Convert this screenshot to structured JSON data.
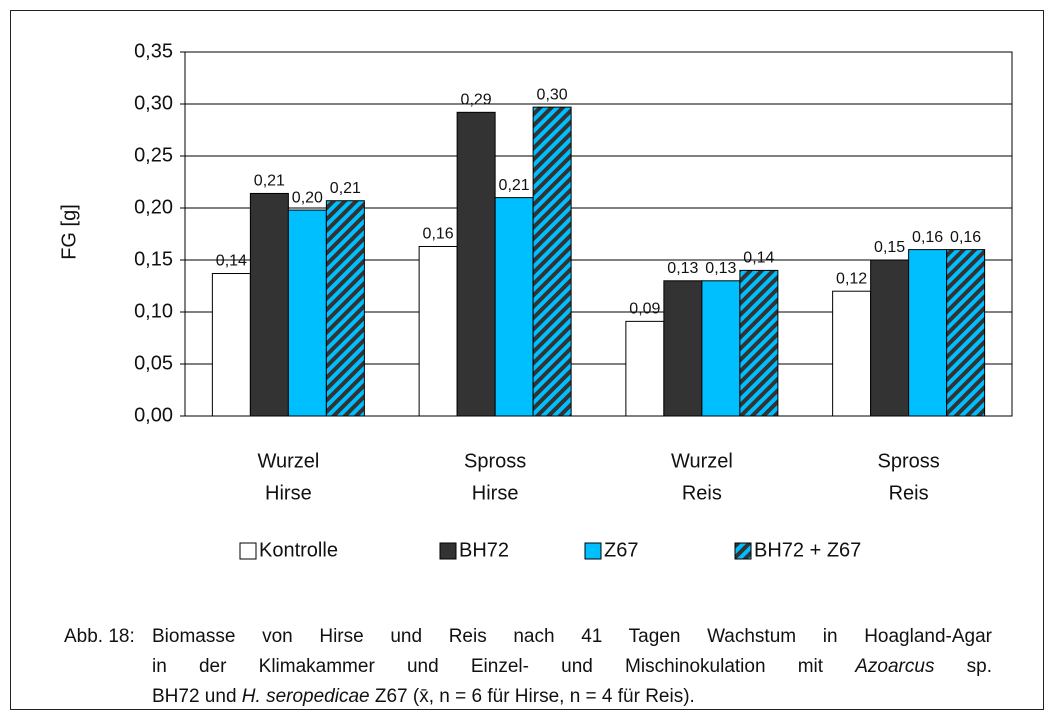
{
  "chart_data": {
    "type": "bar",
    "y_label": "FG [g]",
    "categories": [
      [
        "Wurzel",
        "Hirse"
      ],
      [
        "Spross",
        "Hirse"
      ],
      [
        "Wurzel",
        "Reis"
      ],
      [
        "Spross",
        "Reis"
      ]
    ],
    "series": [
      {
        "name": "Kontrolle",
        "color": "#ffffff",
        "values": [
          0.137,
          0.163,
          0.091,
          0.12
        ],
        "value_labels": [
          "0,14",
          "0,16",
          "0,09",
          "0,12"
        ]
      },
      {
        "name": "BH72",
        "color": "#333333",
        "values": [
          0.214,
          0.292,
          0.13,
          0.15
        ],
        "value_labels": [
          "0,21",
          "0,29",
          "0,13",
          "0,15"
        ]
      },
      {
        "name": "Z67",
        "color": "#00bfff",
        "values": [
          0.198,
          0.21,
          0.13,
          0.16
        ],
        "value_labels": [
          "0,20",
          "0,21",
          "0,13",
          "0,16"
        ]
      },
      {
        "name": "BH72 + Z67",
        "color": "#00bfff",
        "hatch_color": "#333333",
        "values": [
          0.207,
          0.297,
          0.14,
          0.16
        ],
        "value_labels": [
          "0,21",
          "0,30",
          "0,14",
          "0,16"
        ]
      }
    ],
    "ylim": [
      0,
      0.35
    ],
    "yticks": [
      {
        "value": 0,
        "label": "0,00"
      },
      {
        "value": 0.05,
        "label": "0,05"
      },
      {
        "value": 0.1,
        "label": "0,10"
      },
      {
        "value": 0.15,
        "label": "0,15"
      },
      {
        "value": 0.2,
        "label": "0,20"
      },
      {
        "value": 0.25,
        "label": "0,25"
      },
      {
        "value": 0.3,
        "label": "0,30"
      },
      {
        "value": 0.35,
        "label": "0,35"
      }
    ],
    "grid": true,
    "legend": "bottom"
  },
  "caption": {
    "label": "Abb. 18:",
    "lines": [
      [
        {
          "text": "Biomasse von Hirse und Reis nach 41 Tagen Wachstum in Hoagland-Agar"
        }
      ],
      [
        {
          "text": "in der Klimakammer und Einzel- und Mischinokulation mit "
        },
        {
          "text": "Azoarcus",
          "italic": true
        },
        {
          "text": " sp."
        }
      ],
      [
        {
          "text": "BH72 und "
        },
        {
          "text": "H. seropedicae",
          "italic": true
        },
        {
          "text": " Z67 (x̄, n = 6 für Hirse, n = 4 für Reis)."
        }
      ]
    ]
  }
}
